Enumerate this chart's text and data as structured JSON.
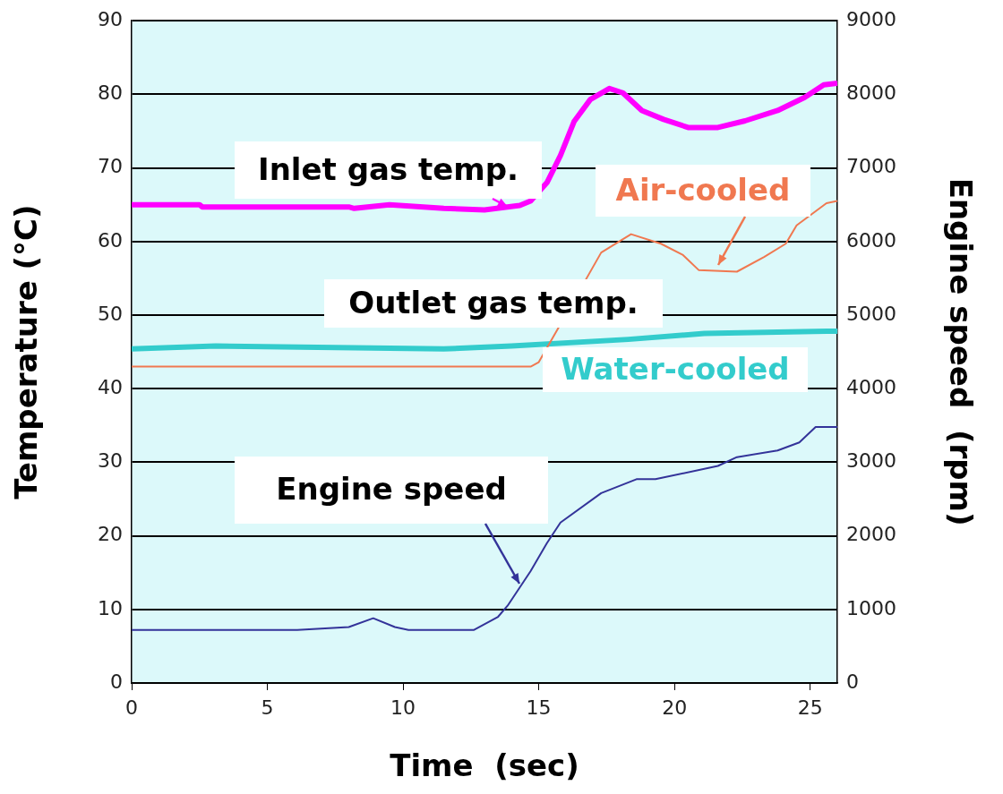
{
  "chart_data": {
    "type": "line",
    "xlabel": "Time  (sec)",
    "ylabel": "Temperature (°C)",
    "y2label": "Engine speed  (rpm)",
    "xlim": [
      0,
      26
    ],
    "xticks": [
      0,
      5,
      10,
      15,
      20,
      25
    ],
    "ylim": [
      0,
      90
    ],
    "yticks": [
      0,
      10,
      20,
      30,
      40,
      50,
      60,
      70,
      80,
      90
    ],
    "y2lim": [
      0,
      9000
    ],
    "y2ticks": [
      0,
      1000,
      2000,
      3000,
      4000,
      5000,
      6000,
      7000,
      8000,
      9000
    ],
    "grid": "y",
    "legend": false,
    "marker": "none",
    "line_style": "solid",
    "annotations": [
      "Outlet gas temp."
    ],
    "series": [
      {
        "name": "Inlet gas temp.",
        "color": "#ff00ff",
        "x": [
          0,
          2.5,
          2.6,
          8.0,
          8.2,
          9.5,
          11.5,
          13.0,
          14.3,
          14.7,
          15.3,
          15.8,
          16.3,
          16.9,
          17.6,
          18.1,
          18.8,
          19.6,
          20.5,
          21.6,
          22.6,
          23.8,
          24.8,
          25.5,
          26
        ],
        "values": [
          65,
          65,
          64.7,
          64.7,
          64.5,
          65,
          64.5,
          64.3,
          64.9,
          65.5,
          68,
          71.7,
          76.3,
          79.3,
          80.8,
          80.2,
          77.8,
          76.6,
          75.5,
          75.5,
          76.4,
          77.8,
          79.6,
          81.3,
          81.5
        ]
      },
      {
        "name": "Air-cooled",
        "color": "#f07850",
        "x": [
          0,
          13.7,
          14.7,
          15.0,
          15.7,
          17.3,
          18.4,
          19.5,
          20.3,
          20.9,
          22.3,
          23.3,
          24.1,
          24.5,
          25.6,
          26
        ],
        "values": [
          43,
          43,
          43,
          43.6,
          48.1,
          58.5,
          61,
          59.7,
          58.2,
          56.1,
          55.9,
          57.9,
          59.7,
          62.2,
          65.2,
          65.5
        ]
      },
      {
        "name": "Water-cooled",
        "color": "#33cccc",
        "x": [
          0,
          3.1,
          11.5,
          14.0,
          18.3,
          21.1,
          25.6,
          26
        ],
        "values": [
          45.4,
          45.8,
          45.4,
          45.8,
          46.7,
          47.5,
          47.8,
          47.8
        ]
      },
      {
        "name": "Engine speed",
        "color": "#333399",
        "axis": "y2",
        "x": [
          0,
          6.1,
          8.0,
          8.9,
          9.7,
          10.2,
          12.6,
          13.5,
          13.85,
          14.7,
          15.3,
          15.8,
          17.3,
          18.6,
          19.3,
          21.6,
          22.3,
          23.8,
          24.6,
          25.2,
          25.6,
          26
        ],
        "values": [
          720,
          720,
          760,
          880,
          760,
          720,
          720,
          900,
          1050,
          1520,
          1900,
          2180,
          2580,
          2770,
          2770,
          2950,
          3070,
          3160,
          3270,
          3480,
          3480,
          3480
        ]
      }
    ]
  }
}
